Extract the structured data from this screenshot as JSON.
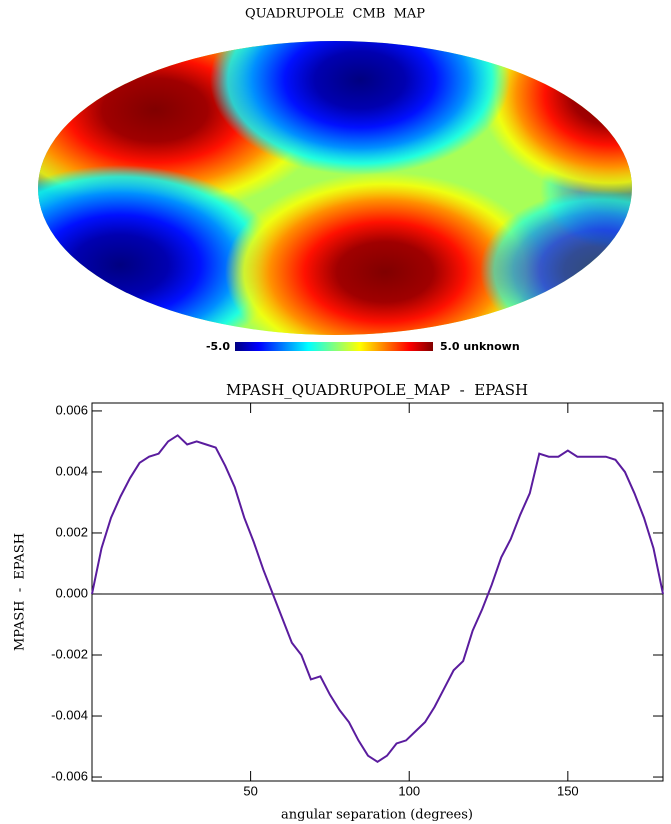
{
  "chart_data": [
    {
      "type": "map",
      "title": "QUADRUPOLE  CMB  MAP",
      "colorbar_min_label": "-5.0",
      "colorbar_max_label": "5.0 unknown"
    },
    {
      "type": "line",
      "title": "MPASH_QUADRUPOLE_MAP  -  EPASH",
      "xlabel": "angular separation (degrees)",
      "ylabel": "MPASH  -  EPASH",
      "color": "#5a1c9e",
      "x": [
        0,
        3,
        6,
        9,
        12,
        15,
        18,
        21,
        24,
        27,
        30,
        33,
        36,
        39,
        42,
        45,
        48,
        51,
        54,
        57,
        60,
        63,
        66,
        69,
        72,
        75,
        78,
        81,
        84,
        87,
        90,
        93,
        96,
        99,
        102,
        105,
        108,
        111,
        114,
        117,
        120,
        123,
        126,
        129,
        132,
        135,
        138,
        141,
        144,
        147,
        150,
        153,
        156,
        159,
        162,
        165,
        168,
        171,
        174,
        177,
        180
      ],
      "values": [
        0,
        0.0015,
        0.0025,
        0.0032,
        0.0038,
        0.0043,
        0.0045,
        0.0046,
        0.005,
        0.0052,
        0.0049,
        0.005,
        0.0049,
        0.0048,
        0.0042,
        0.0035,
        0.0025,
        0.0017,
        0.0008,
        0,
        -0.0008,
        -0.0016,
        -0.002,
        -0.0028,
        -0.0027,
        -0.0033,
        -0.0038,
        -0.0042,
        -0.0048,
        -0.0053,
        -0.0055,
        -0.0053,
        -0.0049,
        -0.0048,
        -0.0045,
        -0.0042,
        -0.0037,
        -0.0031,
        -0.0025,
        -0.0022,
        -0.0012,
        -0.0005,
        0.0003,
        0.0012,
        0.0018,
        0.0026,
        0.0033,
        0.0046,
        0.0045,
        0.0045,
        0.0047,
        0.0045,
        0.0045,
        0.0045,
        0.0045,
        0.0044,
        0.004,
        0.0033,
        0.0025,
        0.0015,
        0
      ],
      "xlim": [
        0,
        180
      ],
      "xticks": [
        50,
        100,
        150
      ],
      "ylim": [
        -0.00613,
        0.00626
      ],
      "yticks": [
        -0.006,
        -0.004,
        -0.002,
        {
          "value": 0,
          "label": "0.000"
        },
        0.002,
        0.004,
        0.006
      ],
      "reference_line": 0
    }
  ]
}
